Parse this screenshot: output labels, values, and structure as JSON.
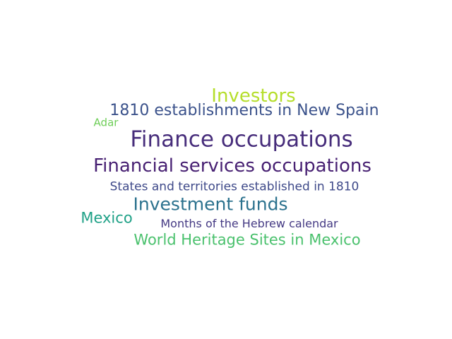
{
  "words": [
    {
      "text": "Investors",
      "color": "#b5de2b"
    },
    {
      "text": "1810 establishments in New Spain",
      "color": "#3b528b"
    },
    {
      "text": "Adar",
      "color": "#6ece58"
    },
    {
      "text": "Finance occupations",
      "color": "#472d7b"
    },
    {
      "text": "Financial services occupations",
      "color": "#482173"
    },
    {
      "text": "States and territories established in 1810",
      "color": "#3e4989"
    },
    {
      "text": "Investment funds",
      "color": "#2c728e"
    },
    {
      "text": "Mexico",
      "color": "#1fa187"
    },
    {
      "text": "Months of the Hebrew calendar",
      "color": "#443983"
    },
    {
      "text": "World Heritage Sites in Mexico",
      "color": "#4ac16d"
    }
  ]
}
